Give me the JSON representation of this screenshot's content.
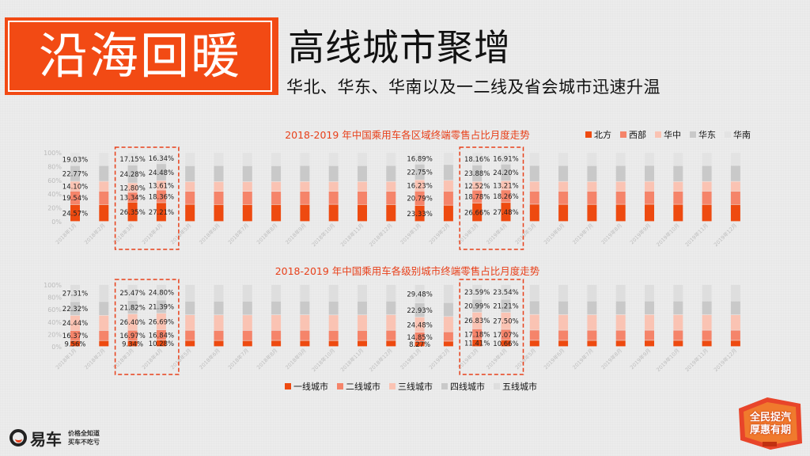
{
  "header": {
    "banner": "沿海回暖",
    "headline": "高线城市聚增",
    "subhead": "华北、华东、华南以及一二线及省会城市迅速升温"
  },
  "chart_data": [
    {
      "type": "bar",
      "stacked": "percent",
      "title": "2018-2019 年中国乘用车各区域终端零售占比月度走势",
      "categories": [
        "2018年1月",
        "2018年2月",
        "2018年3月",
        "2018年4月",
        "2018年5月",
        "2018年6月",
        "2018年7月",
        "2018年8月",
        "2018年9月",
        "2018年10月",
        "2018年11月",
        "2018年12月",
        "2019年1月",
        "2019年2月",
        "2019年3月",
        "2019年4月",
        "2019年5月",
        "2019年6月",
        "2019年7月",
        "2019年8月",
        "2019年9月",
        "2019年10月",
        "2019年11月",
        "2019年12月"
      ],
      "legend_position": "top-right",
      "yaxis_ticks": [
        "0%",
        "20%",
        "40%",
        "60%",
        "80%",
        "100%"
      ],
      "series": [
        {
          "name": "北方",
          "color": "#ee4a10",
          "values": [
            24.57,
            24.5,
            26.35,
            27.21,
            24.8,
            24.6,
            24.5,
            24.6,
            24.7,
            24.8,
            24.6,
            24.5,
            23.33,
            23.6,
            26.66,
            27.48,
            25.0,
            24.8,
            24.7,
            24.8,
            24.9,
            24.8,
            24.7,
            24.6
          ]
        },
        {
          "name": "西部",
          "color": "#f5846a",
          "values": [
            19.54,
            19.5,
            13.34,
            18.36,
            19.0,
            19.1,
            19.2,
            19.0,
            19.1,
            19.0,
            19.2,
            19.3,
            20.79,
            20.3,
            18.78,
            18.26,
            19.0,
            19.1,
            19.2,
            19.0,
            19.1,
            19.0,
            19.2,
            19.3
          ]
        },
        {
          "name": "华中",
          "color": "#fac3b3",
          "values": [
            14.1,
            14.2,
            12.8,
            13.61,
            14.0,
            14.1,
            14.0,
            14.2,
            14.1,
            14.0,
            14.1,
            14.2,
            16.23,
            15.8,
            12.52,
            13.21,
            14.0,
            14.1,
            14.0,
            14.2,
            14.1,
            14.0,
            14.1,
            14.2
          ]
        },
        {
          "name": "华东",
          "color": "#c9c9c9",
          "values": [
            22.77,
            22.8,
            24.28,
            24.48,
            23.0,
            23.2,
            23.1,
            23.0,
            23.2,
            23.1,
            23.0,
            23.1,
            22.75,
            22.9,
            23.88,
            24.2,
            23.2,
            23.1,
            23.0,
            23.1,
            23.2,
            23.1,
            23.0,
            23.1
          ]
        },
        {
          "name": "华南",
          "color": "#e3e3e3",
          "values": [
            19.03,
            19.0,
            17.15,
            16.34,
            19.2,
            19.0,
            19.2,
            19.2,
            18.9,
            19.1,
            19.1,
            18.9,
            16.89,
            17.4,
            18.16,
            16.91,
            18.8,
            18.9,
            19.1,
            18.9,
            18.7,
            19.1,
            19.0,
            18.8
          ]
        }
      ],
      "data_labels": {
        "0": {
          "北方": "24.57%",
          "西部": "19.54%",
          "华中": "14.10%",
          "华东": "22.77%",
          "华南": "19.03%"
        },
        "2": {
          "北方": "26.35%",
          "西部": "13.34%",
          "华中": "12.80%",
          "华东": "24.28%",
          "华南": "17.15%"
        },
        "3": {
          "北方": "27.21%",
          "西部": "18.36%",
          "华中": "13.61%",
          "华东": "24.48%",
          "华南": "16.34%"
        },
        "12": {
          "北方": "23.33%",
          "西部": "20.79%",
          "华中": "16.23%",
          "华东": "22.75%",
          "华南": "16.89%"
        },
        "14": {
          "北方": "26.66%",
          "西部": "18.78%",
          "华中": "12.52%",
          "华东": "23.88%",
          "华南": "18.16%"
        },
        "15": {
          "北方": "27.48%",
          "西部": "18.26%",
          "华中": "13.21%",
          "华东": "24.20%",
          "华南": "16.91%"
        }
      },
      "highlight_groups": [
        [
          2,
          3
        ],
        [
          14,
          15
        ]
      ]
    },
    {
      "type": "bar",
      "stacked": "percent",
      "title": "2018-2019 年中国乘用车各级别城市终端零售占比月度走势",
      "categories": [
        "2018年1月",
        "2018年2月",
        "2018年3月",
        "2018年4月",
        "2018年5月",
        "2018年6月",
        "2018年7月",
        "2018年8月",
        "2018年9月",
        "2018年10月",
        "2018年11月",
        "2018年12月",
        "2019年1月",
        "2019年2月",
        "2019年3月",
        "2019年4月",
        "2019年5月",
        "2019年6月",
        "2019年7月",
        "2019年8月",
        "2019年9月",
        "2019年10月",
        "2019年11月",
        "2019年12月"
      ],
      "legend_position": "bottom",
      "yaxis_ticks": [
        "0%",
        "20%",
        "40%",
        "60%",
        "80%",
        "100%"
      ],
      "series": [
        {
          "name": "一线城市",
          "color": "#ee4a10",
          "values": [
            9.56,
            9.6,
            9.34,
            10.28,
            9.8,
            9.7,
            9.6,
            9.8,
            9.7,
            9.6,
            9.7,
            9.8,
            8.27,
            8.6,
            11.41,
            10.66,
            10.0,
            9.9,
            9.8,
            9.9,
            10.0,
            9.9,
            9.8,
            9.9
          ]
        },
        {
          "name": "二线城市",
          "color": "#f5846a",
          "values": [
            16.37,
            16.4,
            16.97,
            16.84,
            16.5,
            16.4,
            16.5,
            16.4,
            16.6,
            16.5,
            16.4,
            16.5,
            14.85,
            15.2,
            17.18,
            17.07,
            16.6,
            16.5,
            16.6,
            16.5,
            16.4,
            16.5,
            16.6,
            16.5
          ]
        },
        {
          "name": "三线城市",
          "color": "#fac3b3",
          "values": [
            24.44,
            24.5,
            26.4,
            26.69,
            25.0,
            25.1,
            25.0,
            25.2,
            25.1,
            25.0,
            25.1,
            25.2,
            24.48,
            24.8,
            26.83,
            27.5,
            25.3,
            25.2,
            25.1,
            25.2,
            25.3,
            25.2,
            25.1,
            25.0
          ]
        },
        {
          "name": "四线城市",
          "color": "#c9c9c9",
          "values": [
            22.32,
            22.3,
            21.82,
            21.39,
            22.1,
            22.2,
            22.3,
            22.1,
            22.2,
            22.3,
            22.2,
            22.1,
            22.93,
            22.6,
            20.99,
            21.21,
            22.0,
            22.1,
            22.2,
            22.1,
            22.0,
            22.1,
            22.2,
            22.3
          ]
        },
        {
          "name": "五线城市",
          "color": "#dedede",
          "values": [
            27.31,
            27.2,
            25.47,
            24.8,
            26.6,
            26.6,
            26.6,
            26.5,
            26.4,
            26.6,
            26.6,
            26.4,
            29.48,
            28.8,
            23.59,
            23.54,
            26.1,
            26.3,
            26.3,
            26.3,
            26.3,
            26.3,
            26.3,
            26.3
          ]
        }
      ],
      "data_labels": {
        "0": {
          "一线城市": "9.56%",
          "二线城市": "16.37%",
          "三线城市": "24.44%",
          "四线城市": "22.32%",
          "五线城市": "27.31%"
        },
        "2": {
          "一线城市": "9.34%",
          "二线城市": "16.97%",
          "三线城市": "26.40%",
          "四线城市": "21.82%",
          "五线城市": "25.47%"
        },
        "3": {
          "一线城市": "10.28%",
          "二线城市": "16.84%",
          "三线城市": "26.69%",
          "四线城市": "21.39%",
          "五线城市": "24.80%"
        },
        "12": {
          "一线城市": "8.27%",
          "二线城市": "14.85%",
          "三线城市": "24.48%",
          "四线城市": "22.93%",
          "五线城市": "29.48%"
        },
        "14": {
          "一线城市": "11.41%",
          "二线城市": "17.18%",
          "三线城市": "26.83%",
          "四线城市": "20.99%",
          "五线城市": "23.59%"
        },
        "15": {
          "一线城市": "10.66%",
          "二线城市": "17.07%",
          "三线城市": "27.50%",
          "四线城市": "21.21%",
          "五线城市": "23.54%"
        }
      },
      "highlight_groups": [
        [
          2,
          3
        ],
        [
          14,
          15
        ]
      ]
    }
  ],
  "footer": {
    "logo_name": "易车",
    "logo_slogan_1": "价格全知道",
    "logo_slogan_2": "买车不吃亏",
    "badge_1": "全民捉汽",
    "badge_2": "厚惠有期"
  }
}
